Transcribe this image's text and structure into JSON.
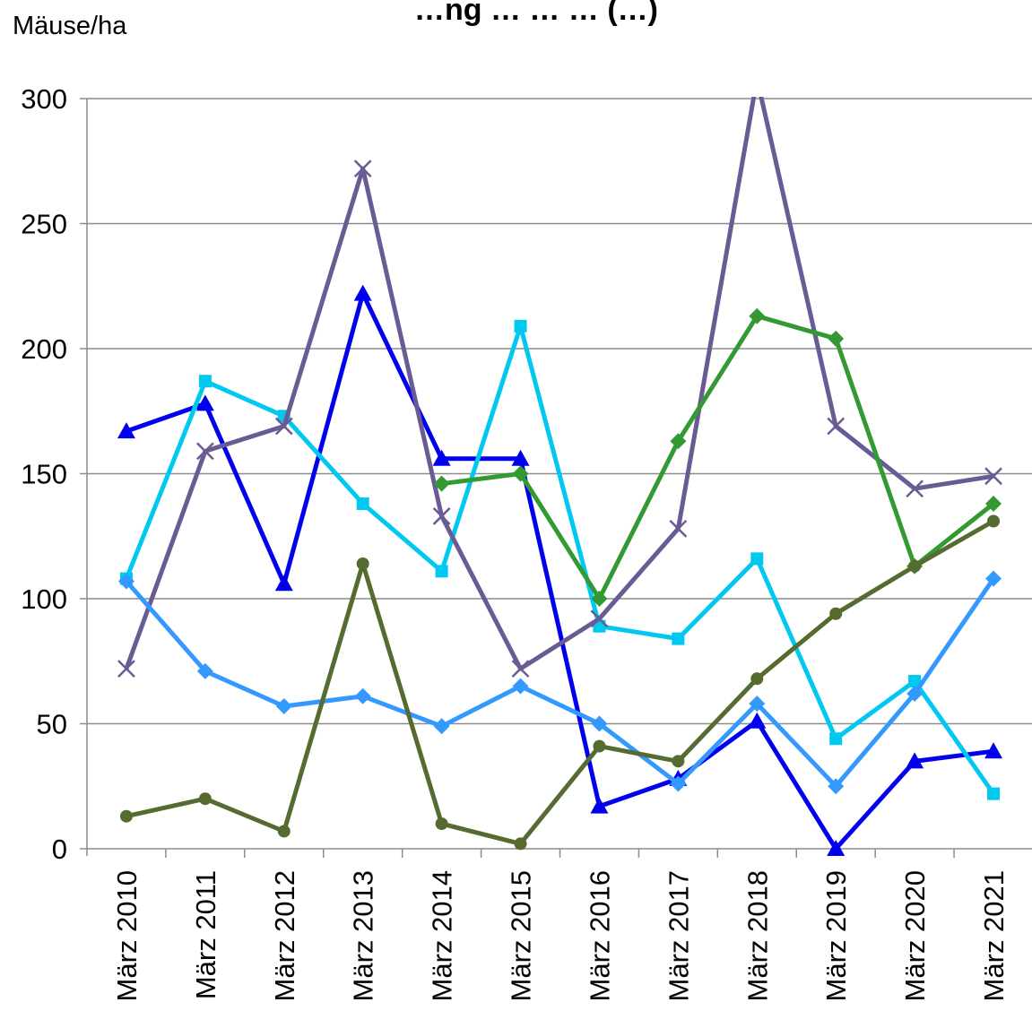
{
  "chart_data": {
    "type": "line",
    "title": "…ng … … … (…)",
    "ylabel": "Mäuse/ha",
    "xlabel": "",
    "ylim": [
      0,
      300
    ],
    "yticks": [
      0,
      50,
      100,
      150,
      200,
      250,
      300
    ],
    "grid": true,
    "legend": "none",
    "categories": [
      "März 2010",
      "März 2011",
      "März 2012",
      "März 2013",
      "März 2014",
      "März 2015",
      "März 2016",
      "März 2017",
      "März 2018",
      "März 2019",
      "März 2020",
      "März 2021"
    ],
    "series": [
      {
        "color": "#0000ee",
        "marker": "triangle",
        "values": [
          167,
          178,
          106,
          222,
          156,
          156,
          17,
          28,
          51,
          0,
          35,
          39
        ]
      },
      {
        "color": "#00c8f0",
        "marker": "square",
        "values": [
          108,
          187,
          173,
          138,
          111,
          209,
          89,
          84,
          116,
          44,
          67,
          22
        ]
      },
      {
        "color": "#6b5b95",
        "marker": "x",
        "values": [
          72,
          159,
          169,
          272,
          133,
          72,
          92,
          128,
          308,
          169,
          144,
          149
        ]
      },
      {
        "color": "#3399ff",
        "marker": "diamond",
        "values": [
          107,
          71,
          57,
          61,
          49,
          65,
          50,
          26,
          58,
          25,
          62,
          108
        ]
      },
      {
        "color": "#339933",
        "marker": "diamond",
        "values": [
          null,
          null,
          null,
          null,
          146,
          150,
          100,
          163,
          213,
          204,
          113,
          138
        ]
      },
      {
        "color": "#556b2f",
        "marker": "circle",
        "values": [
          13,
          20,
          7,
          114,
          10,
          2,
          41,
          35,
          68,
          94,
          113,
          131
        ]
      }
    ]
  }
}
